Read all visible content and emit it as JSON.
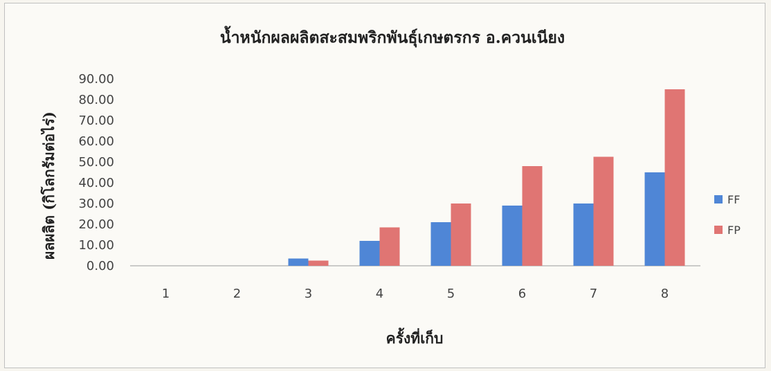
{
  "chart_data": {
    "type": "bar",
    "title": "น้ำหนักผลผลิตสะสมพริกพันธุ์เกษตรกร อ.ควนเนียง",
    "xlabel": "ครั้งที่เก็บ",
    "ylabel": "ผลผลิต (กิโลกรัมต่อไร่)",
    "categories": [
      "1",
      "2",
      "3",
      "4",
      "5",
      "6",
      "7",
      "8"
    ],
    "series": [
      {
        "name": "FF",
        "color": "#4f86d6",
        "values": [
          0,
          0,
          3.5,
          12,
          21,
          29,
          30,
          45
        ]
      },
      {
        "name": "FP",
        "color": "#e07573",
        "values": [
          0,
          0,
          2.5,
          18.5,
          30,
          48,
          52.5,
          85
        ]
      }
    ],
    "ylim": [
      0,
      90
    ],
    "yticks": [
      "0.00",
      "10.00",
      "20.00",
      "30.00",
      "40.00",
      "50.00",
      "60.00",
      "70.00",
      "80.00",
      "90.00"
    ],
    "grid": false,
    "legend_position": "right"
  }
}
